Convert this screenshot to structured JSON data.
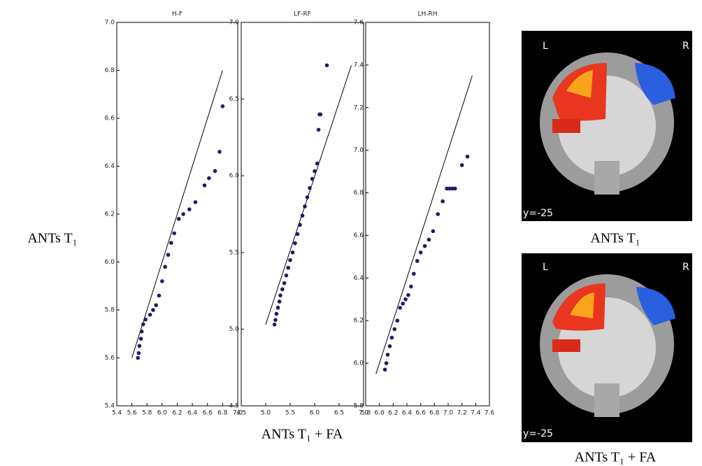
{
  "chart_data": [
    {
      "type": "scatter",
      "title": "H-F",
      "xlim": [
        5.4,
        7.0
      ],
      "ylim": [
        5.4,
        7.0
      ],
      "xticks": [
        {
          "value": 5.4,
          "label": "5.4"
        },
        {
          "value": 5.6,
          "label": "5.6"
        },
        {
          "value": 5.8,
          "label": "5.8"
        },
        {
          "value": 6.0,
          "label": "6.0"
        },
        {
          "value": 6.2,
          "label": "6.2"
        },
        {
          "value": 6.4,
          "label": "6.4"
        },
        {
          "value": 6.6,
          "label": "6.6"
        },
        {
          "value": 6.8,
          "label": "6.8"
        },
        {
          "value": 7.0,
          "label": "7.0"
        }
      ],
      "yticks": [
        5.4,
        5.6,
        5.8,
        {
          "value": 6.0,
          "label": "6.0"
        },
        6.2,
        6.4,
        6.6,
        6.8,
        {
          "value": 7.0,
          "label": "7.0"
        }
      ],
      "color": "#1b1b6b",
      "x": [
        5.68,
        5.69,
        5.7,
        5.72,
        5.73,
        5.75,
        5.78,
        5.84,
        5.88,
        5.92,
        5.96,
        6.0,
        6.04,
        6.08,
        6.12,
        6.16,
        6.22,
        6.28,
        6.36,
        6.44,
        6.56,
        6.62,
        6.7,
        6.76,
        6.8
      ],
      "values": [
        5.6,
        5.62,
        5.65,
        5.68,
        5.71,
        5.74,
        5.76,
        5.78,
        5.8,
        5.82,
        5.86,
        5.92,
        5.98,
        6.03,
        6.08,
        6.12,
        6.18,
        6.2,
        6.22,
        6.25,
        6.32,
        6.35,
        6.38,
        6.46,
        6.65
      ],
      "line": {
        "x": [
          5.6,
          6.8
        ],
        "y": [
          5.6,
          6.8
        ]
      }
    },
    {
      "type": "scatter",
      "title": "LF-RF",
      "xlim": [
        4.5,
        7.0
      ],
      "ylim": [
        4.5,
        7.0
      ],
      "xticks": [
        4.5,
        {
          "value": 5.0,
          "label": "5.0"
        },
        5.5,
        {
          "value": 6.0,
          "label": "6.0"
        },
        6.5,
        {
          "value": 7.0,
          "label": "7.0"
        }
      ],
      "yticks": [
        4.5,
        {
          "value": 5.0,
          "label": "5.0"
        },
        5.5,
        {
          "value": 6.0,
          "label": "6.0"
        },
        6.5,
        {
          "value": 7.0,
          "label": "7.0"
        }
      ],
      "color": "#1b1b6b",
      "x": [
        5.18,
        5.2,
        5.22,
        5.25,
        5.28,
        5.3,
        5.34,
        5.38,
        5.42,
        5.46,
        5.5,
        5.55,
        5.6,
        5.65,
        5.7,
        5.75,
        5.8,
        5.85,
        5.9,
        5.95,
        6.0,
        6.05,
        6.08,
        6.1,
        6.12,
        6.25
      ],
      "values": [
        5.03,
        5.06,
        5.1,
        5.14,
        5.18,
        5.22,
        5.26,
        5.3,
        5.35,
        5.4,
        5.45,
        5.5,
        5.56,
        5.62,
        5.68,
        5.74,
        5.8,
        5.86,
        5.92,
        5.98,
        6.03,
        6.08,
        6.3,
        6.4,
        6.4,
        6.72
      ],
      "line": {
        "x": [
          5.0,
          6.75
        ],
        "y": [
          5.03,
          6.72
        ]
      }
    },
    {
      "type": "scatter",
      "title": "LH-RH",
      "xlim": [
        5.8,
        7.6
      ],
      "ylim": [
        5.8,
        7.6
      ],
      "xticks": [
        5.8,
        {
          "value": 6.0,
          "label": "6.0"
        },
        6.2,
        6.4,
        6.6,
        6.8,
        {
          "value": 7.0,
          "label": "7.0"
        },
        7.2,
        7.4,
        7.6
      ],
      "yticks": [
        5.8,
        {
          "value": 6.0,
          "label": "6.0"
        },
        6.2,
        6.4,
        6.6,
        6.8,
        {
          "value": 7.0,
          "label": "7.0"
        },
        7.2,
        7.4,
        7.6
      ],
      "color": "#1b1b6b",
      "x": [
        6.08,
        6.1,
        6.12,
        6.15,
        6.18,
        6.22,
        6.26,
        6.3,
        6.34,
        6.38,
        6.42,
        6.46,
        6.5,
        6.55,
        6.6,
        6.66,
        6.72,
        6.78,
        6.85,
        6.92,
        6.98,
        7.02,
        7.06,
        7.1,
        7.2,
        7.28
      ],
      "values": [
        5.97,
        6.0,
        6.04,
        6.08,
        6.12,
        6.16,
        6.2,
        6.26,
        6.28,
        6.3,
        6.32,
        6.36,
        6.42,
        6.48,
        6.52,
        6.55,
        6.58,
        6.62,
        6.7,
        6.76,
        6.82,
        6.82,
        6.82,
        6.82,
        6.93,
        6.97
      ],
      "line": {
        "x": [
          5.95,
          7.35
        ],
        "y": [
          5.95,
          7.35
        ]
      }
    }
  ],
  "labels": {
    "left": "ANTs T₁",
    "bottom": "ANTs T₁ + FA"
  },
  "images": [
    {
      "left_marker": "L",
      "right_marker": "R",
      "slice": "y=-25",
      "caption": "ANTs T₁"
    },
    {
      "left_marker": "L",
      "right_marker": "R",
      "slice": "y=-25",
      "caption": "ANTs T₁ + FA"
    }
  ]
}
